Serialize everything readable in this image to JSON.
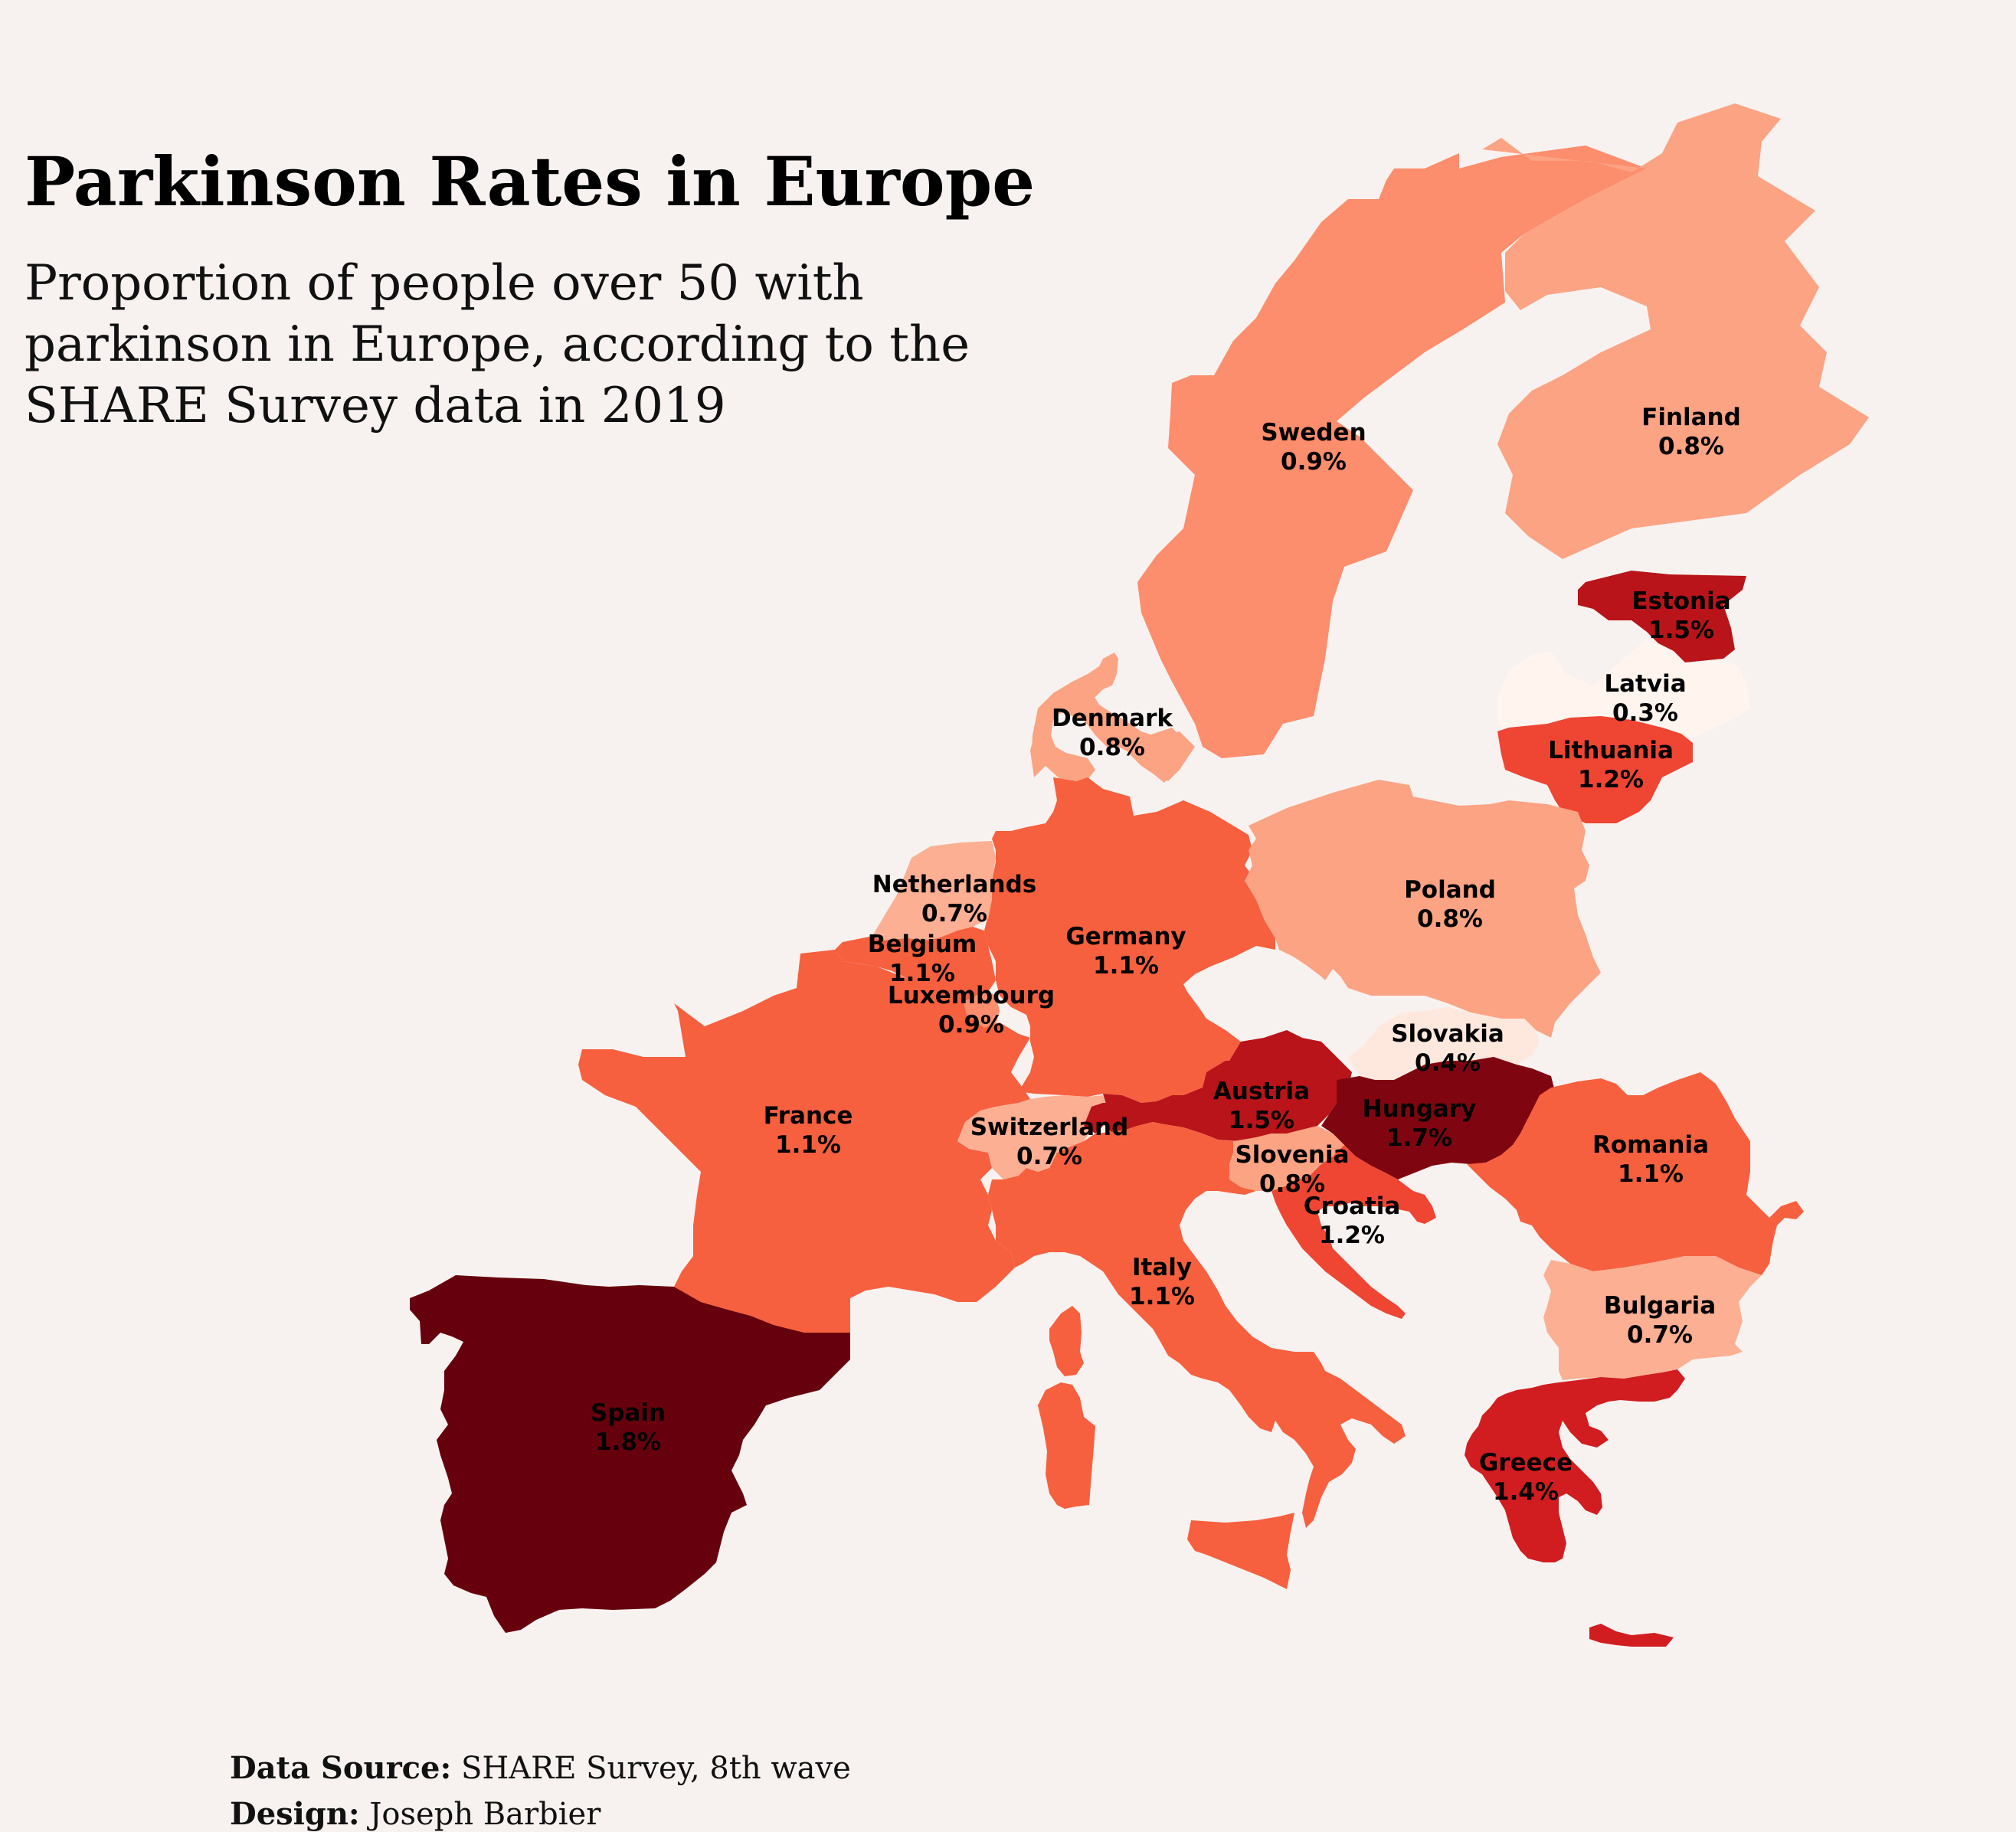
{
  "title": "Parkinson Rates in Europe",
  "subtitle": "Proportion of people over 50 with parkinson in Europe, according to the SHARE Survey data in 2019",
  "credits": {
    "source_label": "Data Source:",
    "source_value": "SHARE Survey, 8th wave",
    "design_label": "Design:",
    "design_value": "Joseph Barbier"
  },
  "map_data": {
    "metric": "Proportion of people over 50 with parkinson",
    "unit": "%",
    "colors": {
      "background": "#f7f2ef",
      "r03": "#fff4ee",
      "r04": "#fee8de",
      "r07": "#fcaf93",
      "r08": "#fca384",
      "r09": "#fc8d6d",
      "r11": "#f6603f",
      "r12": "#ef4533",
      "r14": "#d11d20",
      "r15": "#b81419",
      "r17": "#7f0610",
      "r18": "#67000d"
    },
    "countries": [
      {
        "key": "sweden",
        "name": "Sweden",
        "value_label": "0.9%",
        "value": 0.9,
        "color": "#fc8d6d"
      },
      {
        "key": "finland",
        "name": "Finland",
        "value_label": "0.8%",
        "value": 0.8,
        "color": "#fca384"
      },
      {
        "key": "estonia",
        "name": "Estonia",
        "value_label": "1.5%",
        "value": 1.5,
        "color": "#b81419"
      },
      {
        "key": "latvia",
        "name": "Latvia",
        "value_label": "0.3%",
        "value": 0.3,
        "color": "#fff4ee"
      },
      {
        "key": "lithuania",
        "name": "Lithuania",
        "value_label": "1.2%",
        "value": 1.2,
        "color": "#ef4533"
      },
      {
        "key": "denmark",
        "name": "Denmark",
        "value_label": "0.8%",
        "value": 0.8,
        "color": "#fca384"
      },
      {
        "key": "netherlands",
        "name": "Netherlands",
        "value_label": "0.7%",
        "value": 0.7,
        "color": "#fcaf93"
      },
      {
        "key": "belgium",
        "name": "Belgium",
        "value_label": "1.1%",
        "value": 1.1,
        "color": "#f6603f"
      },
      {
        "key": "luxembourg",
        "name": "Luxembourg",
        "value_label": "0.9%",
        "value": 0.9,
        "color": "#fc8d6d"
      },
      {
        "key": "germany",
        "name": "Germany",
        "value_label": "1.1%",
        "value": 1.1,
        "color": "#f6603f"
      },
      {
        "key": "poland",
        "name": "Poland",
        "value_label": "0.8%",
        "value": 0.8,
        "color": "#fca384"
      },
      {
        "key": "slovakia",
        "name": "Slovakia",
        "value_label": "0.4%",
        "value": 0.4,
        "color": "#fee8de"
      },
      {
        "key": "austria",
        "name": "Austria",
        "value_label": "1.5%",
        "value": 1.5,
        "color": "#b81419"
      },
      {
        "key": "hungary",
        "name": "Hungary",
        "value_label": "1.7%",
        "value": 1.7,
        "color": "#7f0610"
      },
      {
        "key": "romania",
        "name": "Romania",
        "value_label": "1.1%",
        "value": 1.1,
        "color": "#f6603f"
      },
      {
        "key": "france",
        "name": "France",
        "value_label": "1.1%",
        "value": 1.1,
        "color": "#f6603f"
      },
      {
        "key": "switzerland",
        "name": "Switzerland",
        "value_label": "0.7%",
        "value": 0.7,
        "color": "#fcaf93"
      },
      {
        "key": "slovenia",
        "name": "Slovenia",
        "value_label": "0.8%",
        "value": 0.8,
        "color": "#fca384"
      },
      {
        "key": "croatia",
        "name": "Croatia",
        "value_label": "1.2%",
        "value": 1.2,
        "color": "#ef4533"
      },
      {
        "key": "italy",
        "name": "Italy",
        "value_label": "1.1%",
        "value": 1.1,
        "color": "#f6603f"
      },
      {
        "key": "bulgaria",
        "name": "Bulgaria",
        "value_label": "0.7%",
        "value": 0.7,
        "color": "#fcaf93"
      },
      {
        "key": "spain",
        "name": "Spain",
        "value_label": "1.8%",
        "value": 1.8,
        "color": "#67000d"
      },
      {
        "key": "greece",
        "name": "Greece",
        "value_label": "1.4%",
        "value": 1.4,
        "color": "#d11d20"
      }
    ]
  }
}
